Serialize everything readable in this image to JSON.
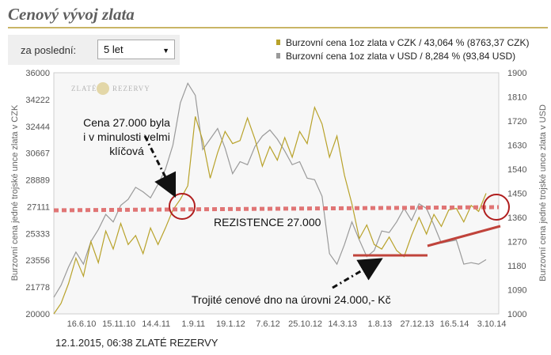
{
  "page": {
    "title": "Cenový vývoj zlata"
  },
  "filter": {
    "label": "za poslední:",
    "selected": "5 let"
  },
  "legend": {
    "items": [
      {
        "text": "Burzovní cena 1oz zlata v CZK / 43,064 % (8763,37 CZK)",
        "color": "#b8a22a"
      },
      {
        "text": "Burzovní cena 1oz zlata v USD / 8,284 % (93,84 USD)",
        "color": "#9a9a9a"
      }
    ]
  },
  "watermark": {
    "left": "ZLATÉ",
    "right": "REZERVY"
  },
  "footer": {
    "text": "12.1.2015, 06:38 ZLATÉ REZERVY"
  },
  "annotations": {
    "resistance_note": [
      "Cena 27.000 byla",
      "i v minulosti velmi",
      "klíčová"
    ],
    "resistance_label": "REZISTENCE 27.000",
    "bottom_label": "Trojité cenové dno na úrovni 24.000,- Kč"
  },
  "chart_data": {
    "type": "line",
    "x_tick_labels": [
      "16.6.10",
      "15.11.10",
      "14.4.11",
      "1.9.11",
      "19.1.12",
      "7.6.12",
      "25.10.12",
      "14.3.13",
      "1.8.13",
      "27.12.13",
      "16.5.14",
      "3.10.14"
    ],
    "left_axis": {
      "title": "Burzovní cena jedné trojské unce zlata v CZK",
      "ticks": [
        36000,
        34222,
        32444,
        30667,
        28889,
        27111,
        25333,
        23556,
        21778,
        20000
      ],
      "range": [
        20000,
        36000
      ]
    },
    "right_axis": {
      "title": "Burzovní cena jedné trojské unce zlata v USD",
      "ticks": [
        1900,
        1810,
        1720,
        1630,
        1540,
        1450,
        1360,
        1270,
        1180,
        1090,
        1000
      ],
      "range": [
        1000,
        1900
      ]
    },
    "series": [
      {
        "name": "Burzovní cena 1oz zlata v CZK",
        "axis": "left",
        "color": "#b8a22a",
        "x": [
          0,
          0.2,
          0.4,
          0.6,
          0.8,
          1,
          1.2,
          1.4,
          1.6,
          1.8,
          2,
          2.2,
          2.4,
          2.6,
          2.8,
          3,
          3.2,
          3.4,
          3.6,
          3.8,
          4,
          4.2,
          4.4,
          4.6,
          4.8,
          5,
          5.2,
          5.4,
          5.6,
          5.8,
          6,
          6.2,
          6.4,
          6.6,
          6.8,
          7,
          7.2,
          7.4,
          7.6,
          7.8,
          8,
          8.2,
          8.4,
          8.6,
          8.8,
          9,
          9.2,
          9.4,
          9.6,
          9.8,
          10,
          10.2,
          10.4,
          10.6,
          10.8,
          11,
          11.2,
          11.4,
          11.6
        ],
        "values": [
          20000,
          20700,
          22000,
          23700,
          22500,
          24800,
          23400,
          25500,
          24300,
          26000,
          24600,
          25200,
          24000,
          25700,
          24600,
          25700,
          26900,
          27600,
          28500,
          33100,
          31500,
          29000,
          30700,
          32100,
          31300,
          31500,
          33000,
          31600,
          29800,
          31100,
          30200,
          31700,
          30400,
          32100,
          31300,
          33700,
          32600,
          30400,
          31800,
          29200,
          27300,
          25000,
          25900,
          24600,
          24300,
          25100,
          24200,
          23800,
          25200,
          26400,
          25300,
          26600,
          25800,
          26900,
          27000,
          26100,
          27200,
          26800,
          28000
        ]
      },
      {
        "name": "Burzovní cena 1oz zlata v USD",
        "axis": "left",
        "color": "#9a9a9a",
        "x": [
          0,
          0.2,
          0.4,
          0.6,
          0.8,
          1,
          1.2,
          1.4,
          1.6,
          1.8,
          2,
          2.2,
          2.4,
          2.6,
          2.8,
          3,
          3.2,
          3.4,
          3.6,
          3.8,
          4,
          4.2,
          4.4,
          4.6,
          4.8,
          5,
          5.2,
          5.4,
          5.6,
          5.8,
          6,
          6.2,
          6.4,
          6.6,
          6.8,
          7,
          7.2,
          7.4,
          7.6,
          7.8,
          8,
          8.2,
          8.4,
          8.6,
          8.8,
          9,
          9.2,
          9.4,
          9.6,
          9.8,
          10,
          10.2,
          10.4,
          10.6,
          10.8,
          11,
          11.2,
          11.4,
          11.6
        ],
        "values": [
          21100,
          21900,
          23100,
          24100,
          23300,
          24800,
          25600,
          26600,
          26100,
          27200,
          27600,
          28400,
          28100,
          27700,
          28600,
          29600,
          31200,
          34000,
          35300,
          34500,
          30900,
          31600,
          32300,
          31000,
          29300,
          30100,
          29900,
          31100,
          31800,
          32200,
          31600,
          30800,
          29900,
          30100,
          29000,
          28900,
          27800,
          24000,
          23300,
          24600,
          26100,
          24900,
          23800,
          24200,
          25500,
          25400,
          26100,
          27000,
          26200,
          27300,
          27000,
          25900,
          24700,
          24800,
          24900,
          23300,
          23400,
          23300,
          23600
        ]
      }
    ],
    "grid": false,
    "legend_position": "top-right"
  }
}
